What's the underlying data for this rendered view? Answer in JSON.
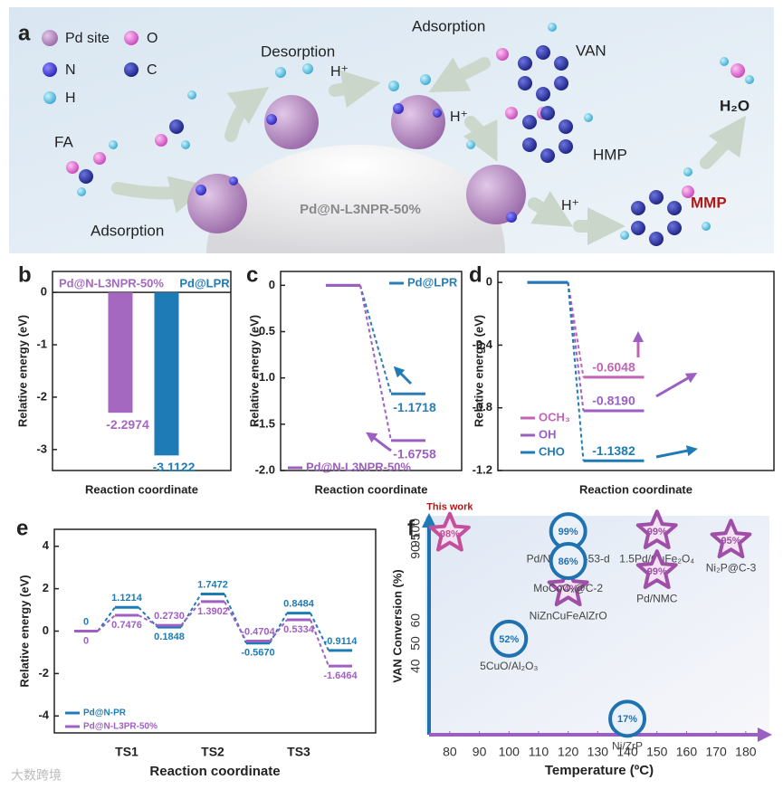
{
  "diagram": {
    "panel_label": "a",
    "legend": [
      "Pd site",
      "O",
      "N",
      "C",
      "H"
    ],
    "texts": [
      "FA",
      "Desorption",
      "Adsorption",
      "Adsorption",
      "H⁺",
      "H⁺",
      "H⁺",
      "VAN",
      "HMP",
      "H₂O",
      "MMP",
      "Pd@N-L3NPR-50%"
    ]
  },
  "watermark": "大数跨境",
  "chart_data": [
    {
      "panel_label": "b",
      "type": "bar",
      "ylabel": "Relative energy (eV)",
      "xlabel": "Reaction coordinate",
      "categories": [
        "Pd@N-L3NPR-50%",
        "Pd@LPR"
      ],
      "values": [
        -2.2974,
        -3.1122
      ],
      "colors": [
        "#a568c0",
        "#1f7bb6"
      ],
      "ylim": [
        -3.4,
        0.4
      ],
      "yticks": [
        0,
        -1,
        -2,
        -3
      ]
    },
    {
      "panel_label": "c",
      "type": "energy_profile",
      "ylabel": "Relative energy (eV)",
      "xlabel": "Reaction coordinate",
      "series": [
        {
          "name": "Pd@LPR",
          "color": "#2a7db5",
          "values": [
            0,
            -1.1718
          ]
        },
        {
          "name": "Pd@N-L3NPR-50%",
          "color": "#9b5fc0",
          "values": [
            0,
            -1.6758
          ]
        }
      ],
      "ylim": [
        -2.0,
        0.15
      ],
      "yticks": [
        0,
        -0.5,
        {
          "value": -1,
          "label": "-1.0"
        },
        -1.5,
        {
          "value": -2,
          "label": "-2.0"
        }
      ]
    },
    {
      "panel_label": "d",
      "type": "energy_profile",
      "ylabel": "Relative energy (eV)",
      "xlabel": "Reaction coordinate",
      "series": [
        {
          "name": "OCH₃",
          "color": "#c064b6",
          "values": [
            0,
            -0.6048
          ]
        },
        {
          "name": "OH",
          "color": "#9a5fc0",
          "values": [
            0,
            -0.819
          ],
          "value_labels": [
            "0",
            "-0.8190"
          ]
        },
        {
          "name": "CHO",
          "color": "#1f7bb6",
          "values": [
            0,
            -1.1382
          ]
        }
      ],
      "ylim": [
        -1.2,
        0.07
      ],
      "yticks": [
        0,
        -0.4,
        -0.8,
        -1.2
      ]
    },
    {
      "panel_label": "e",
      "type": "energy_profile",
      "ylabel": "Relative energy (eV)",
      "xlabel": "Reaction coordinate",
      "categories": [
        null,
        "TS1",
        null,
        "TS2",
        null,
        "TS3",
        null
      ],
      "series": [
        {
          "name": "Pd@N-PR",
          "color": "#1f7bb6",
          "values": [
            0,
            1.1214,
            0.1848,
            1.7472,
            -0.567,
            0.8484,
            -0.9114
          ],
          "value_labels": [
            "0",
            "1.1214",
            "0.1848",
            "1.7472",
            "-0.5670",
            "0.8484",
            "-0.9114"
          ]
        },
        {
          "name": "Pd@N-L3PR-50%",
          "color": "#a05fc2",
          "values": [
            0,
            0.7476,
            0.273,
            1.3902,
            -0.4704,
            0.5334,
            -1.6464
          ],
          "value_labels": [
            "0",
            "0.7476",
            "0.2730",
            "1.3902",
            "-0.4704",
            "0.5334",
            "-1.6464"
          ]
        }
      ],
      "ylim": [
        -4.8,
        4.8
      ],
      "yticks": [
        -4,
        -2,
        0,
        2,
        4
      ]
    },
    {
      "panel_label": "f",
      "type": "scatter",
      "ylabel": "VAN Conversion (%)",
      "xlabel": "Temperature (ºC)",
      "x": [
        80,
        120,
        150,
        175,
        150,
        100,
        120,
        120,
        140
      ],
      "values": [
        98,
        99,
        99,
        95,
        99,
        52,
        74,
        86,
        17
      ],
      "value_labels": [
        "98%",
        "99%",
        "99%",
        "95%",
        "99%",
        "52%",
        "74%",
        "86%",
        "17%"
      ],
      "point_labels": [
        "This work",
        "Pd/NH₂-MIL-53-d",
        "1.5Pd/CuFe₂O₄",
        "Ni₂P@C-3",
        "Pd/NMC",
        "5CuO/Al₂O₃",
        "NiZnCuFeAlZrO",
        "MoCoOₓ@C-2",
        "Ni/ZrP"
      ],
      "shapes": [
        "star",
        "circle",
        "star",
        "star",
        "star",
        "circle",
        "star",
        "circle",
        "circle"
      ],
      "colors": [
        "#c2509c",
        "#1f72b0",
        "#a04fa8",
        "#a04fa8",
        "#a04fa8",
        "#1f72b0",
        "#a04fa8",
        "#1f72b0",
        "#1f72b0"
      ],
      "xlim": [
        73,
        188
      ],
      "xticks": [
        80,
        90,
        100,
        110,
        120,
        130,
        140,
        150,
        160,
        170,
        180
      ],
      "ylim": [
        10,
        105
      ],
      "yticks": [
        40,
        50,
        60,
        90,
        95,
        100
      ]
    }
  ]
}
